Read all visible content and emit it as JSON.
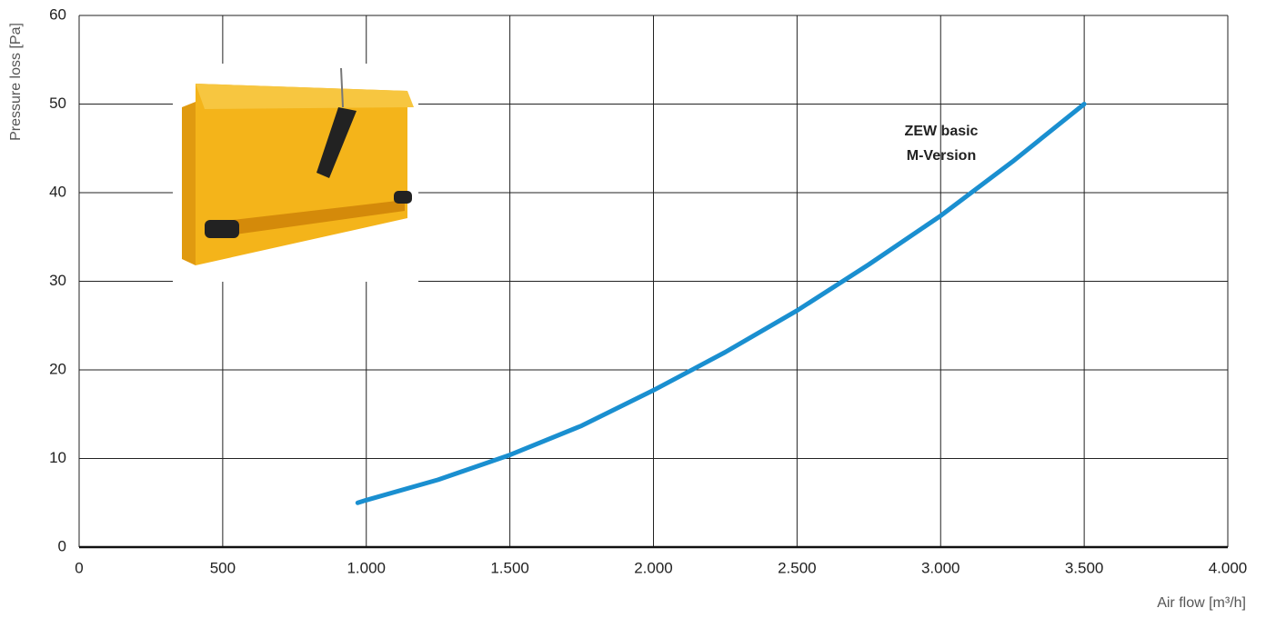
{
  "chart_data": {
    "type": "line",
    "y_label": "Pressure loss [Pa]",
    "x_label": "Air flow [m³/h]",
    "annotation": [
      "ZEW basic",
      "M-Version"
    ],
    "x": [
      970,
      1000,
      1250,
      1500,
      1750,
      2000,
      2250,
      2500,
      2750,
      3000,
      3250,
      3500
    ],
    "values": [
      5,
      5.3,
      7.6,
      10.4,
      13.7,
      17.7,
      22,
      26.7,
      31.9,
      37.4,
      43.5,
      50
    ],
    "color": "#1a8fd0",
    "xlim": [
      0,
      4000
    ],
    "xticks": [
      0,
      500,
      {
        "value": 1000,
        "label": "1.000"
      },
      {
        "value": 1500,
        "label": "1.500"
      },
      {
        "value": 2000,
        "label": "2.000"
      },
      {
        "value": 2500,
        "label": "2.500"
      },
      {
        "value": 3000,
        "label": "3.000"
      },
      {
        "value": 3500,
        "label": "3.500"
      },
      {
        "value": 4000,
        "label": "4.000"
      }
    ],
    "ylim": [
      0,
      60
    ],
    "yticks": [
      0,
      10,
      20,
      30,
      40,
      50,
      60
    ],
    "grid": true
  }
}
